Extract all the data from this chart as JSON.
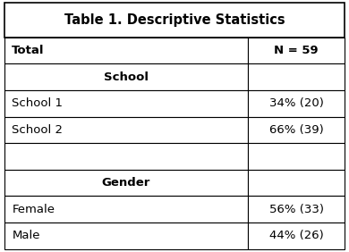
{
  "title": "Table 1. Descriptive Statistics",
  "rows": [
    {
      "label": "Total",
      "value": "N = 59",
      "bold_label": true,
      "bold_value": true,
      "center_label": false
    },
    {
      "label": "School",
      "value": "",
      "bold_label": true,
      "bold_value": false,
      "center_label": true
    },
    {
      "label": "School 1",
      "value": "34% (20)",
      "bold_label": false,
      "bold_value": false,
      "center_label": false
    },
    {
      "label": "School 2",
      "value": "66% (39)",
      "bold_label": false,
      "bold_value": false,
      "center_label": false
    },
    {
      "label": "",
      "value": "",
      "bold_label": false,
      "bold_value": false,
      "center_label": false
    },
    {
      "label": "Gender",
      "value": "",
      "bold_label": true,
      "bold_value": false,
      "center_label": true
    },
    {
      "label": "Female",
      "value": "56% (33)",
      "bold_label": false,
      "bold_value": false,
      "center_label": false
    },
    {
      "label": "Male",
      "value": "44% (26)",
      "bold_label": false,
      "bold_value": false,
      "center_label": false
    }
  ],
  "col_split": 0.715,
  "bg_color": "#ffffff",
  "border_color": "#000000",
  "title_fontsize": 10.5,
  "cell_fontsize": 9.5,
  "fig_width": 3.9,
  "fig_height": 2.82,
  "dpi": 100
}
